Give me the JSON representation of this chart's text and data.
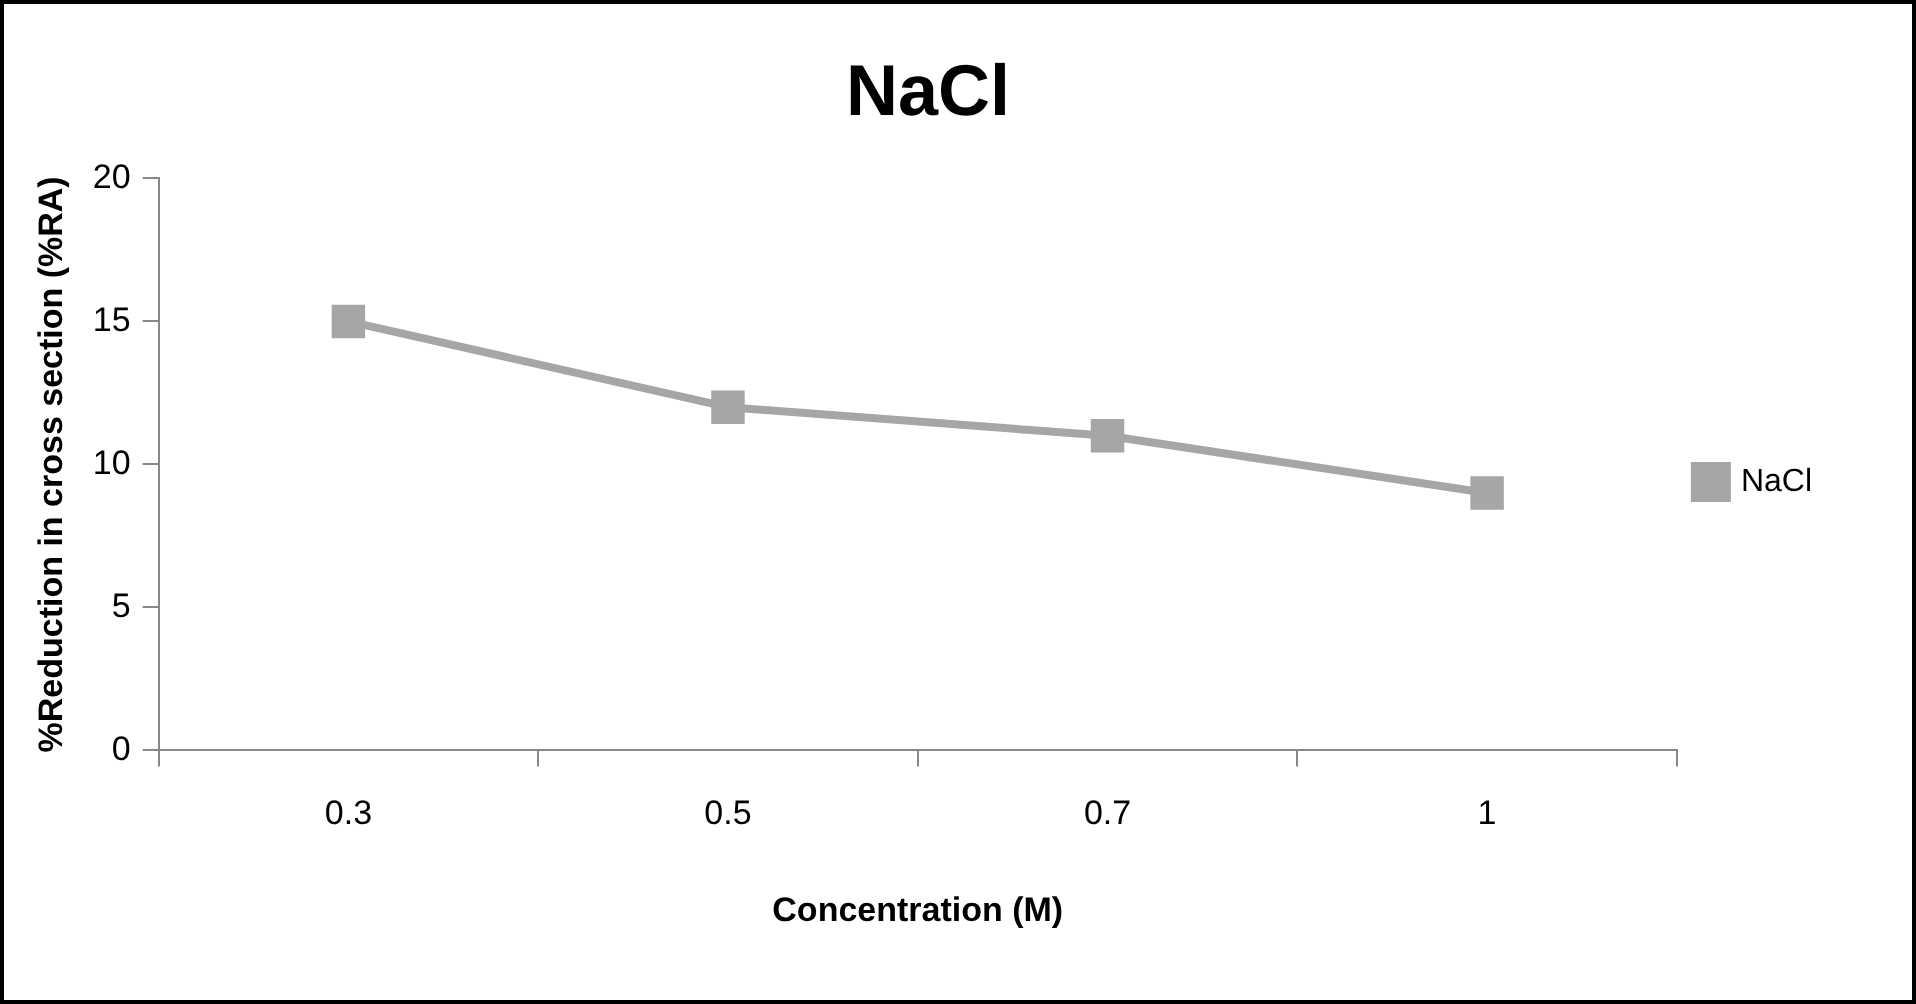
{
  "chart_data": {
    "type": "line",
    "title": "NaCl",
    "xlabel": "Concentration (M)",
    "ylabel": "%Reduction in cross section (%RA)",
    "categories": [
      "0.3",
      "0.5",
      "0.7",
      "1"
    ],
    "series": [
      {
        "name": "NaCl",
        "color": "#a6a6a6",
        "values": [
          15,
          12,
          11,
          9
        ]
      }
    ],
    "ylim": [
      0,
      20
    ],
    "yticks": [
      0,
      5,
      10,
      15,
      20
    ],
    "grid": false,
    "legend": "right",
    "marker": "square",
    "line_style": "solid"
  }
}
